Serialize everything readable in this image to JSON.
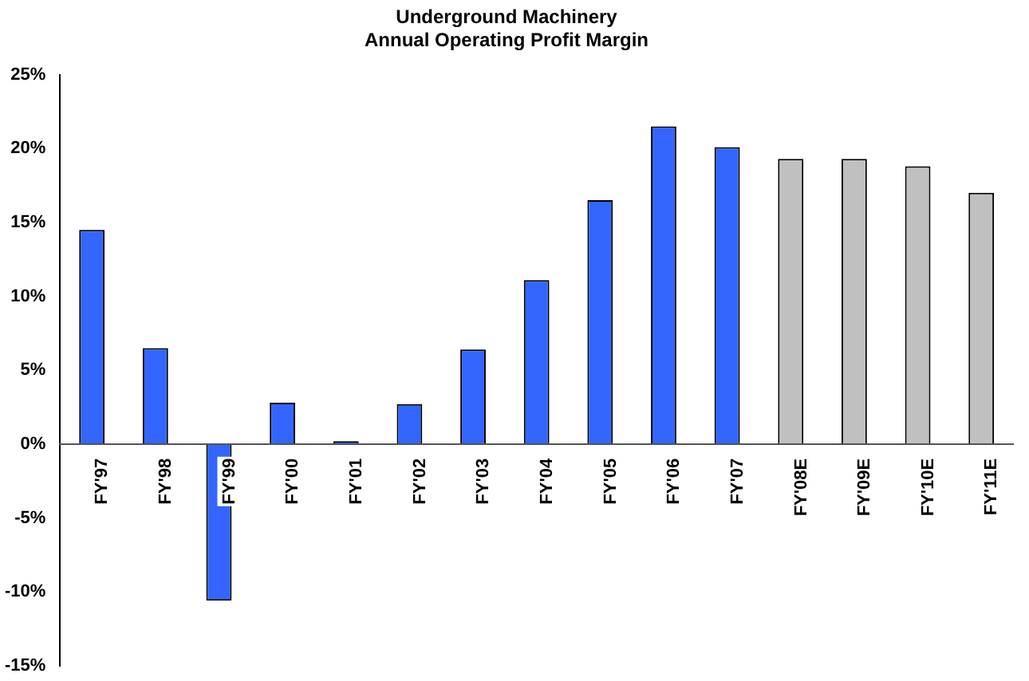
{
  "chart_data": {
    "type": "bar",
    "title": [
      "Underground Machinery",
      "Annual Operating Profit Margin"
    ],
    "categories": [
      "FY'97",
      "FY'98",
      "FY'99",
      "FY'00",
      "FY'01",
      "FY'02",
      "FY'03",
      "FY'04",
      "FY'05",
      "FY'06",
      "FY'07",
      "FY'08E",
      "FY'09E",
      "FY'10E",
      "FY'11E"
    ],
    "values": [
      14.5,
      6.5,
      -10.6,
      2.8,
      0.2,
      2.7,
      6.4,
      11.1,
      16.5,
      21.5,
      20.1,
      19.3,
      19.3,
      18.8,
      17.0
    ],
    "colors": [
      "#3366ff",
      "#3366ff",
      "#3366ff",
      "#3366ff",
      "#3366ff",
      "#3366ff",
      "#3366ff",
      "#3366ff",
      "#3366ff",
      "#3366ff",
      "#3366ff",
      "#c0c0c0",
      "#c0c0c0",
      "#c0c0c0",
      "#c0c0c0"
    ],
    "ylim": [
      -15,
      25
    ],
    "yticks": [
      {
        "value": -15,
        "label": "-15%"
      },
      {
        "value": -10,
        "label": "-10%"
      },
      {
        "value": -5,
        "label": "-5%"
      },
      {
        "value": 0,
        "label": "0%"
      },
      {
        "value": 5,
        "label": "5%"
      },
      {
        "value": 10,
        "label": "10%"
      },
      {
        "value": 15,
        "label": "15%"
      },
      {
        "value": 20,
        "label": "20%"
      },
      {
        "value": 25,
        "label": "25%"
      }
    ],
    "grid": false,
    "legend": false
  }
}
